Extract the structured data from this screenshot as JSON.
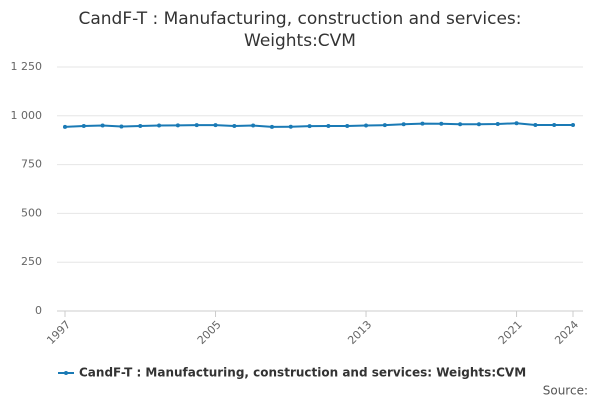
{
  "chart_data": {
    "type": "line",
    "title": "CandF-T : Manufacturing, construction and services: Weights:CVM",
    "x": [
      1997,
      1998,
      1999,
      2000,
      2001,
      2002,
      2003,
      2004,
      2005,
      2006,
      2007,
      2008,
      2009,
      2010,
      2011,
      2012,
      2013,
      2014,
      2015,
      2016,
      2017,
      2018,
      2019,
      2020,
      2021,
      2022,
      2023,
      2024
    ],
    "series": [
      {
        "name": "CandF-T : Manufacturing, construction and services: Weights:CVM",
        "color": "#1a7ab5",
        "values": [
          943,
          948,
          950,
          945,
          948,
          950,
          951,
          952,
          952,
          948,
          950,
          943,
          944,
          947,
          948,
          948,
          950,
          952,
          957,
          960,
          959,
          957,
          957,
          958,
          962,
          953,
          953,
          953
        ]
      }
    ],
    "xlim": [
      1997,
      2024
    ],
    "xticks": [
      1997,
      2005,
      2013,
      2021,
      2024
    ],
    "ylim": [
      0,
      1250
    ],
    "yticks": [
      0,
      250,
      500,
      750,
      {
        "value": 1000,
        "label": "1 000"
      },
      {
        "value": 1250,
        "label": "1 250"
      }
    ],
    "grid": true,
    "legend": "bottom",
    "source": "Source:"
  }
}
